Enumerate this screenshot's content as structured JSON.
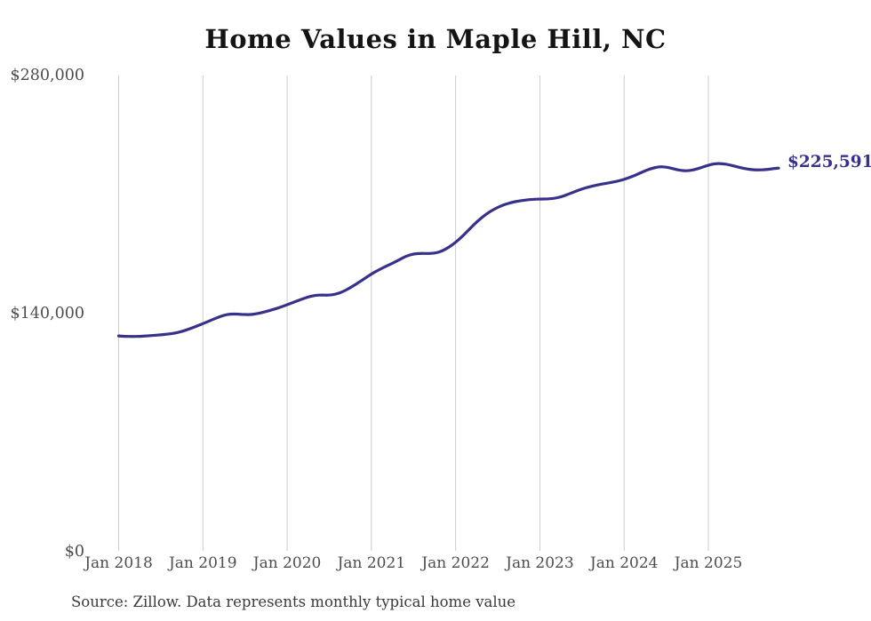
{
  "title": "Home Values in Maple Hill, NC",
  "source_note": "Source: Zillow. Data represents monthly typical home value",
  "colors": {
    "background": "#ffffff",
    "line": "#37318b",
    "grid": "#cccccc",
    "axis_text": "#4d4d4d",
    "title_text": "#141414",
    "source_text": "#3a3a3a",
    "end_label": "#37318b"
  },
  "chart_data": {
    "type": "line",
    "title": "Home Values in Maple Hill, NC",
    "series_name": "Monthly typical home value",
    "end_label_text": "$225,591",
    "final_value": 225591,
    "legend": "none",
    "grid": "vertical-only",
    "ylim": [
      0,
      280000
    ],
    "y_tick_labels": [
      "$280,000",
      "$140,000",
      "$0"
    ],
    "y_tick_values": [
      280000,
      140000,
      0
    ],
    "x_tick_labels": [
      "Jan 2018",
      "Jan 2019",
      "Jan 2020",
      "Jan 2021",
      "Jan 2022",
      "Jan 2023",
      "Jan 2024",
      "Jan 2025"
    ],
    "x_tick_month_indices": [
      0,
      12,
      24,
      36,
      48,
      60,
      72,
      84
    ],
    "x": [
      "2018-01",
      "2018-02",
      "2018-03",
      "2018-04",
      "2018-05",
      "2018-06",
      "2018-07",
      "2018-08",
      "2018-09",
      "2018-10",
      "2018-11",
      "2018-12",
      "2019-01",
      "2019-02",
      "2019-03",
      "2019-04",
      "2019-05",
      "2019-06",
      "2019-07",
      "2019-08",
      "2019-09",
      "2019-10",
      "2019-11",
      "2019-12",
      "2020-01",
      "2020-02",
      "2020-03",
      "2020-04",
      "2020-05",
      "2020-06",
      "2020-07",
      "2020-08",
      "2020-09",
      "2020-10",
      "2020-11",
      "2020-12",
      "2021-01",
      "2021-02",
      "2021-03",
      "2021-04",
      "2021-05",
      "2021-06",
      "2021-07",
      "2021-08",
      "2021-09",
      "2021-10",
      "2021-11",
      "2021-12",
      "2022-01",
      "2022-02",
      "2022-03",
      "2022-04",
      "2022-05",
      "2022-06",
      "2022-07",
      "2022-08",
      "2022-09",
      "2022-10",
      "2022-11",
      "2022-12",
      "2023-01",
      "2023-02",
      "2023-03",
      "2023-04",
      "2023-05",
      "2023-06",
      "2023-07",
      "2023-08",
      "2023-09",
      "2023-10",
      "2023-11",
      "2023-12",
      "2024-01",
      "2024-02",
      "2024-03",
      "2024-04",
      "2024-05",
      "2024-06",
      "2024-07",
      "2024-08",
      "2024-09",
      "2024-10",
      "2024-11",
      "2024-12",
      "2025-01",
      "2025-02",
      "2025-03",
      "2025-04",
      "2025-05",
      "2025-06",
      "2025-07",
      "2025-08",
      "2025-09",
      "2025-10",
      "2025-11"
    ],
    "values": [
      126900,
      126600,
      126500,
      126600,
      126900,
      127200,
      127500,
      127900,
      128500,
      129500,
      130900,
      132400,
      134100,
      135800,
      137600,
      139100,
      139800,
      139700,
      139400,
      139500,
      140200,
      141200,
      142400,
      143700,
      145200,
      146800,
      148400,
      149800,
      150800,
      150900,
      150800,
      151500,
      153000,
      155200,
      157800,
      160500,
      163300,
      165600,
      167700,
      169600,
      171700,
      173900,
      175100,
      175400,
      175300,
      175500,
      176600,
      178900,
      181900,
      185600,
      189800,
      193900,
      197400,
      200300,
      202500,
      204200,
      205400,
      206200,
      206800,
      207200,
      207400,
      207400,
      207700,
      208600,
      210100,
      211800,
      213300,
      214500,
      215500,
      216300,
      217000,
      217800,
      218900,
      220400,
      222100,
      224000,
      225500,
      226400,
      226200,
      225200,
      224200,
      223900,
      224600,
      225900,
      227300,
      228300,
      228200,
      227500,
      226400,
      225400,
      224700,
      224400,
      224600,
      225100,
      225591
    ]
  }
}
